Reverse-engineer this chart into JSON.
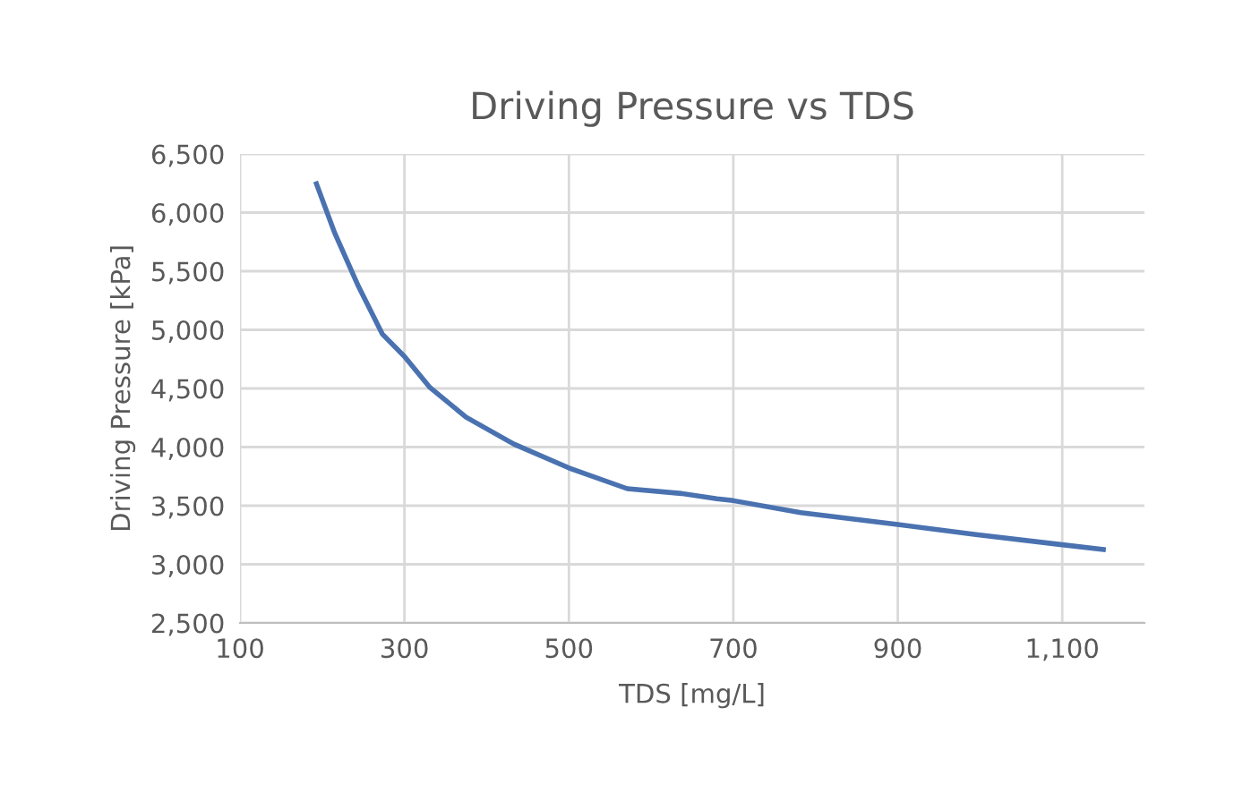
{
  "chart_data": {
    "type": "line",
    "title": "Driving Pressure vs TDS",
    "xlabel": "TDS [mg/L]",
    "ylabel": "Driving Pressure [kPa]",
    "series": [
      {
        "color": "#4a72b0",
        "x": [
          193,
          215,
          244,
          273,
          300,
          331,
          375,
          433,
          500,
          571,
          637,
          680,
          700,
          782,
          900,
          995,
          1100,
          1150
        ],
        "values": [
          6245,
          5829,
          5372,
          4965,
          4773,
          4508,
          4255,
          4026,
          3822,
          3645,
          3604,
          3560,
          3543,
          3441,
          3340,
          3254,
          3167,
          3127
        ]
      }
    ],
    "xlim": [
      100,
      1200
    ],
    "xticks": [
      100,
      300,
      500,
      700,
      900,
      {
        "value": 1100,
        "label": "1,100"
      }
    ],
    "ylim": [
      2500,
      6500
    ],
    "yticks": [
      {
        "value": 2500,
        "label": "2,500"
      },
      {
        "value": 3000,
        "label": "3,000"
      },
      {
        "value": 3500,
        "label": "3,500"
      },
      {
        "value": 4000,
        "label": "4,000"
      },
      {
        "value": 4500,
        "label": "4,500"
      },
      {
        "value": 5000,
        "label": "5,000"
      },
      {
        "value": 5500,
        "label": "5,500"
      },
      {
        "value": 6000,
        "label": "6,000"
      },
      {
        "value": 6500,
        "label": "6,500"
      }
    ],
    "grid": true,
    "legend": false,
    "marker": "none",
    "line_style": "solid"
  }
}
